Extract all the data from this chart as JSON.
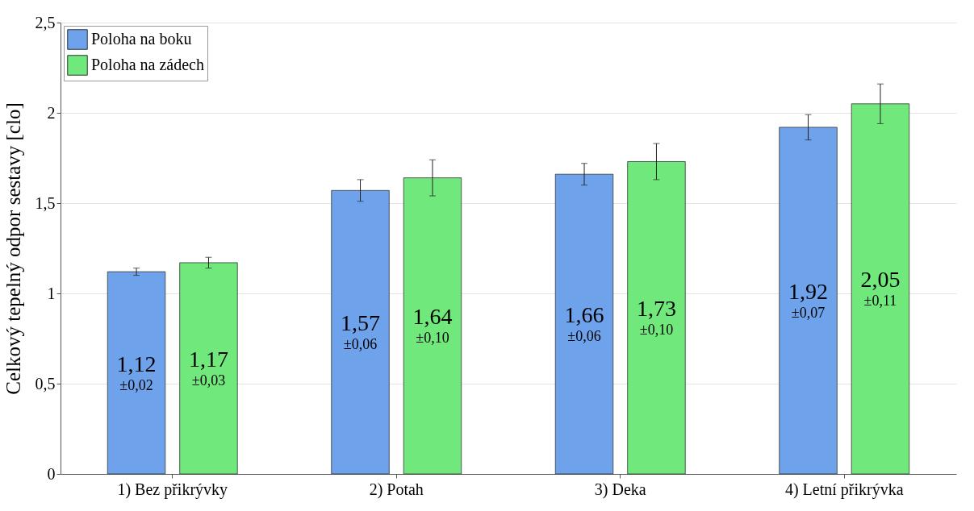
{
  "chart_data": {
    "type": "bar",
    "ylabel": "Celkový tepelný odpor sestavy [clo]",
    "categories": [
      "1) Bez přikrývky",
      "2) Potah",
      "3) Deka",
      "4) Letní přikrývka"
    ],
    "series": [
      {
        "name": "Poloha na boku",
        "color": "#6ea2ea",
        "values": [
          1.12,
          1.57,
          1.66,
          1.92
        ],
        "errors": [
          0.02,
          0.06,
          0.06,
          0.07
        ],
        "value_labels": [
          "1,12\n±0,02",
          "1,57\n±0,06",
          "1,66\n±0,06",
          "1,92\n±0,07"
        ]
      },
      {
        "name": "Poloha na zádech",
        "color": "#70e87c",
        "values": [
          1.17,
          1.64,
          1.73,
          2.05
        ],
        "errors": [
          0.03,
          0.1,
          0.1,
          0.11
        ],
        "value_labels": [
          "1,17\n±0,03",
          "1,64\n±0,10",
          "1,73\n±0,10",
          "2,05\n±0,11"
        ]
      }
    ],
    "ylim": [
      0,
      2.5
    ],
    "yticks": [
      0,
      {
        "value": 0.5,
        "label": "0,5"
      },
      1,
      {
        "value": 1.5,
        "label": "1,5"
      },
      2,
      {
        "value": 2.5,
        "label": "2,5"
      }
    ],
    "grid": "y",
    "legend": "top left"
  }
}
